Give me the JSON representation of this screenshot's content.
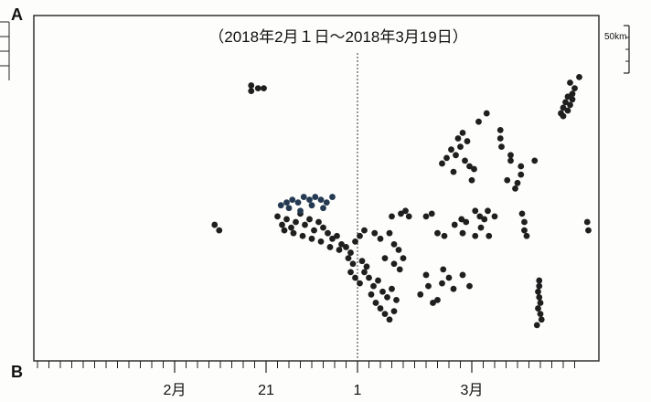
{
  "chart_data": {
    "type": "scatter",
    "title": "（2018年2月１日～2018年3月19日）",
    "corner_top": "A",
    "corner_bottom": "B",
    "scale_label": "50km",
    "x_ticks": [
      {
        "label": "2月",
        "day": 13
      },
      {
        "label": "21",
        "day": 21
      },
      {
        "label": "1",
        "day": 29
      },
      {
        "label": "3月",
        "day": 39
      }
    ],
    "x_range_days": [
      1,
      48
    ],
    "divider_day": 29,
    "y_label": "",
    "point_color": "#1f1f1f",
    "highlight_color": "#243a52",
    "series": [
      {
        "name": "",
        "points": [
          [
            19.7,
            0.89
          ],
          [
            19.7,
            0.87
          ],
          [
            20.3,
            0.88
          ],
          [
            20.8,
            0.88
          ],
          [
            16.5,
            0.39
          ],
          [
            16.9,
            0.37
          ],
          [
            22.0,
            0.42
          ],
          [
            22.4,
            0.39
          ],
          [
            22.8,
            0.41
          ],
          [
            23.2,
            0.38
          ],
          [
            23.6,
            0.4
          ],
          [
            24.0,
            0.43
          ],
          [
            24.4,
            0.39
          ],
          [
            24.8,
            0.41
          ],
          [
            25.2,
            0.37
          ],
          [
            25.6,
            0.4
          ],
          [
            26.0,
            0.38
          ],
          [
            26.4,
            0.36
          ],
          [
            26.8,
            0.34
          ],
          [
            27.2,
            0.35
          ],
          [
            27.6,
            0.32
          ],
          [
            28.0,
            0.31
          ],
          [
            28.4,
            0.29
          ],
          [
            28.8,
            0.33
          ],
          [
            29.2,
            0.35
          ],
          [
            29.6,
            0.37
          ],
          [
            22.6,
            0.37
          ],
          [
            23.4,
            0.36
          ],
          [
            24.2,
            0.35
          ],
          [
            25.0,
            0.34
          ],
          [
            25.8,
            0.33
          ],
          [
            26.6,
            0.31
          ],
          [
            27.4,
            0.3
          ],
          [
            28.2,
            0.27
          ],
          [
            28.6,
            0.25
          ],
          [
            29.4,
            0.26
          ],
          [
            29.8,
            0.24
          ],
          [
            28.4,
            0.22
          ],
          [
            28.8,
            0.2
          ],
          [
            29.2,
            0.18
          ],
          [
            29.6,
            0.22
          ],
          [
            30.0,
            0.2
          ],
          [
            30.4,
            0.17
          ],
          [
            30.8,
            0.19
          ],
          [
            31.2,
            0.15
          ],
          [
            31.6,
            0.13
          ],
          [
            32.0,
            0.16
          ],
          [
            32.4,
            0.12
          ],
          [
            30.6,
            0.11
          ],
          [
            31.0,
            0.09
          ],
          [
            31.4,
            0.07
          ],
          [
            31.8,
            0.05
          ],
          [
            32.2,
            0.08
          ],
          [
            30.2,
            0.14
          ],
          [
            30.5,
            0.36
          ],
          [
            31.0,
            0.34
          ],
          [
            31.8,
            0.36
          ],
          [
            32.2,
            0.32
          ],
          [
            32.6,
            0.3
          ],
          [
            31.4,
            0.27
          ],
          [
            32.2,
            0.25
          ],
          [
            32.7,
            0.23
          ],
          [
            33.0,
            0.27
          ],
          [
            32.0,
            0.42
          ],
          [
            32.8,
            0.43
          ],
          [
            33.2,
            0.44
          ],
          [
            33.5,
            0.42
          ],
          [
            34.5,
            0.14
          ],
          [
            35.2,
            0.17
          ],
          [
            35.6,
            0.11
          ],
          [
            36.0,
            0.12
          ],
          [
            36.4,
            0.18
          ],
          [
            35.0,
            0.21
          ],
          [
            36.5,
            0.23
          ],
          [
            37.4,
            0.16
          ],
          [
            38.2,
            0.21
          ],
          [
            38.8,
            0.17
          ],
          [
            37.0,
            0.2
          ],
          [
            35.0,
            0.42
          ],
          [
            35.5,
            0.43
          ],
          [
            36.0,
            0.36
          ],
          [
            36.6,
            0.35
          ],
          [
            37.5,
            0.39
          ],
          [
            38.1,
            0.41
          ],
          [
            38.5,
            0.4
          ],
          [
            38.2,
            0.36
          ],
          [
            36.4,
            0.61
          ],
          [
            36.8,
            0.63
          ],
          [
            37.2,
            0.66
          ],
          [
            37.6,
            0.64
          ],
          [
            38.0,
            0.67
          ],
          [
            38.4,
            0.62
          ],
          [
            38.8,
            0.6
          ],
          [
            37.8,
            0.7
          ],
          [
            38.2,
            0.72
          ],
          [
            38.6,
            0.69
          ],
          [
            37.4,
            0.58
          ],
          [
            39.2,
            0.59
          ],
          [
            39.0,
            0.55
          ],
          [
            39.6,
            0.76
          ],
          [
            40.3,
            0.79
          ],
          [
            41.5,
            0.73
          ],
          [
            41.5,
            0.7
          ],
          [
            42.4,
            0.62
          ],
          [
            42.4,
            0.64
          ],
          [
            42.1,
            0.55
          ],
          [
            43.0,
            0.54
          ],
          [
            43.3,
            0.6
          ],
          [
            43.3,
            0.57
          ],
          [
            44.5,
            0.62
          ],
          [
            41.6,
            0.67
          ],
          [
            42.8,
            0.52
          ],
          [
            39.3,
            0.44
          ],
          [
            39.7,
            0.42
          ],
          [
            40.4,
            0.44
          ],
          [
            40.1,
            0.41
          ],
          [
            41.0,
            0.42
          ],
          [
            39.8,
            0.38
          ],
          [
            39.3,
            0.35
          ],
          [
            40.5,
            0.35
          ],
          [
            43.4,
            0.43
          ],
          [
            43.6,
            0.4
          ],
          [
            43.6,
            0.37
          ],
          [
            43.8,
            0.35
          ],
          [
            44.9,
            0.19
          ],
          [
            44.9,
            0.17
          ],
          [
            44.8,
            0.15
          ],
          [
            44.9,
            0.13
          ],
          [
            45.0,
            0.11
          ],
          [
            44.8,
            0.09
          ],
          [
            45.0,
            0.07
          ],
          [
            45.1,
            0.05
          ],
          [
            44.7,
            0.03
          ],
          [
            46.8,
            0.79
          ],
          [
            47.0,
            0.81
          ],
          [
            47.2,
            0.83
          ],
          [
            47.4,
            0.85
          ],
          [
            47.6,
            0.82
          ],
          [
            47.8,
            0.84
          ],
          [
            47.0,
            0.78
          ],
          [
            47.4,
            0.8
          ],
          [
            47.8,
            0.86
          ],
          [
            48.0,
            0.88
          ],
          [
            47.6,
            0.9
          ],
          [
            48.4,
            0.92
          ],
          [
            49.1,
            0.4
          ],
          [
            49.2,
            0.37
          ]
        ]
      },
      {
        "name": "",
        "highlight": true,
        "points": [
          [
            22.3,
            0.46
          ],
          [
            22.8,
            0.47
          ],
          [
            23.3,
            0.48
          ],
          [
            23.8,
            0.47
          ],
          [
            24.3,
            0.49
          ],
          [
            24.8,
            0.48
          ],
          [
            25.3,
            0.49
          ],
          [
            25.8,
            0.48
          ],
          [
            26.3,
            0.47
          ],
          [
            26.8,
            0.49
          ],
          [
            23.0,
            0.45
          ],
          [
            24.0,
            0.44
          ],
          [
            25.0,
            0.46
          ],
          [
            26.0,
            0.45
          ]
        ]
      }
    ]
  }
}
